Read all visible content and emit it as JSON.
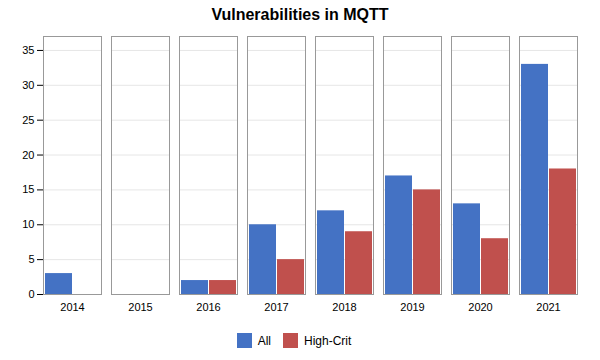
{
  "chart_data": {
    "type": "bar",
    "title": "Vulnerabilities in MQTT",
    "categories": [
      "2014",
      "2015",
      "2016",
      "2017",
      "2018",
      "2019",
      "2020",
      "2021"
    ],
    "series": [
      {
        "name": "All",
        "color": "#4472C4",
        "values": [
          3,
          0,
          2,
          10,
          12,
          17,
          13,
          33
        ]
      },
      {
        "name": "High-Crit",
        "color": "#C0504D",
        "values": [
          0,
          0,
          2,
          5,
          9,
          15,
          8,
          18
        ]
      }
    ],
    "ylim": [
      0,
      37
    ],
    "yticks": [
      0,
      5,
      10,
      15,
      20,
      25,
      30,
      35
    ],
    "grid": true,
    "legend": "bottom"
  }
}
